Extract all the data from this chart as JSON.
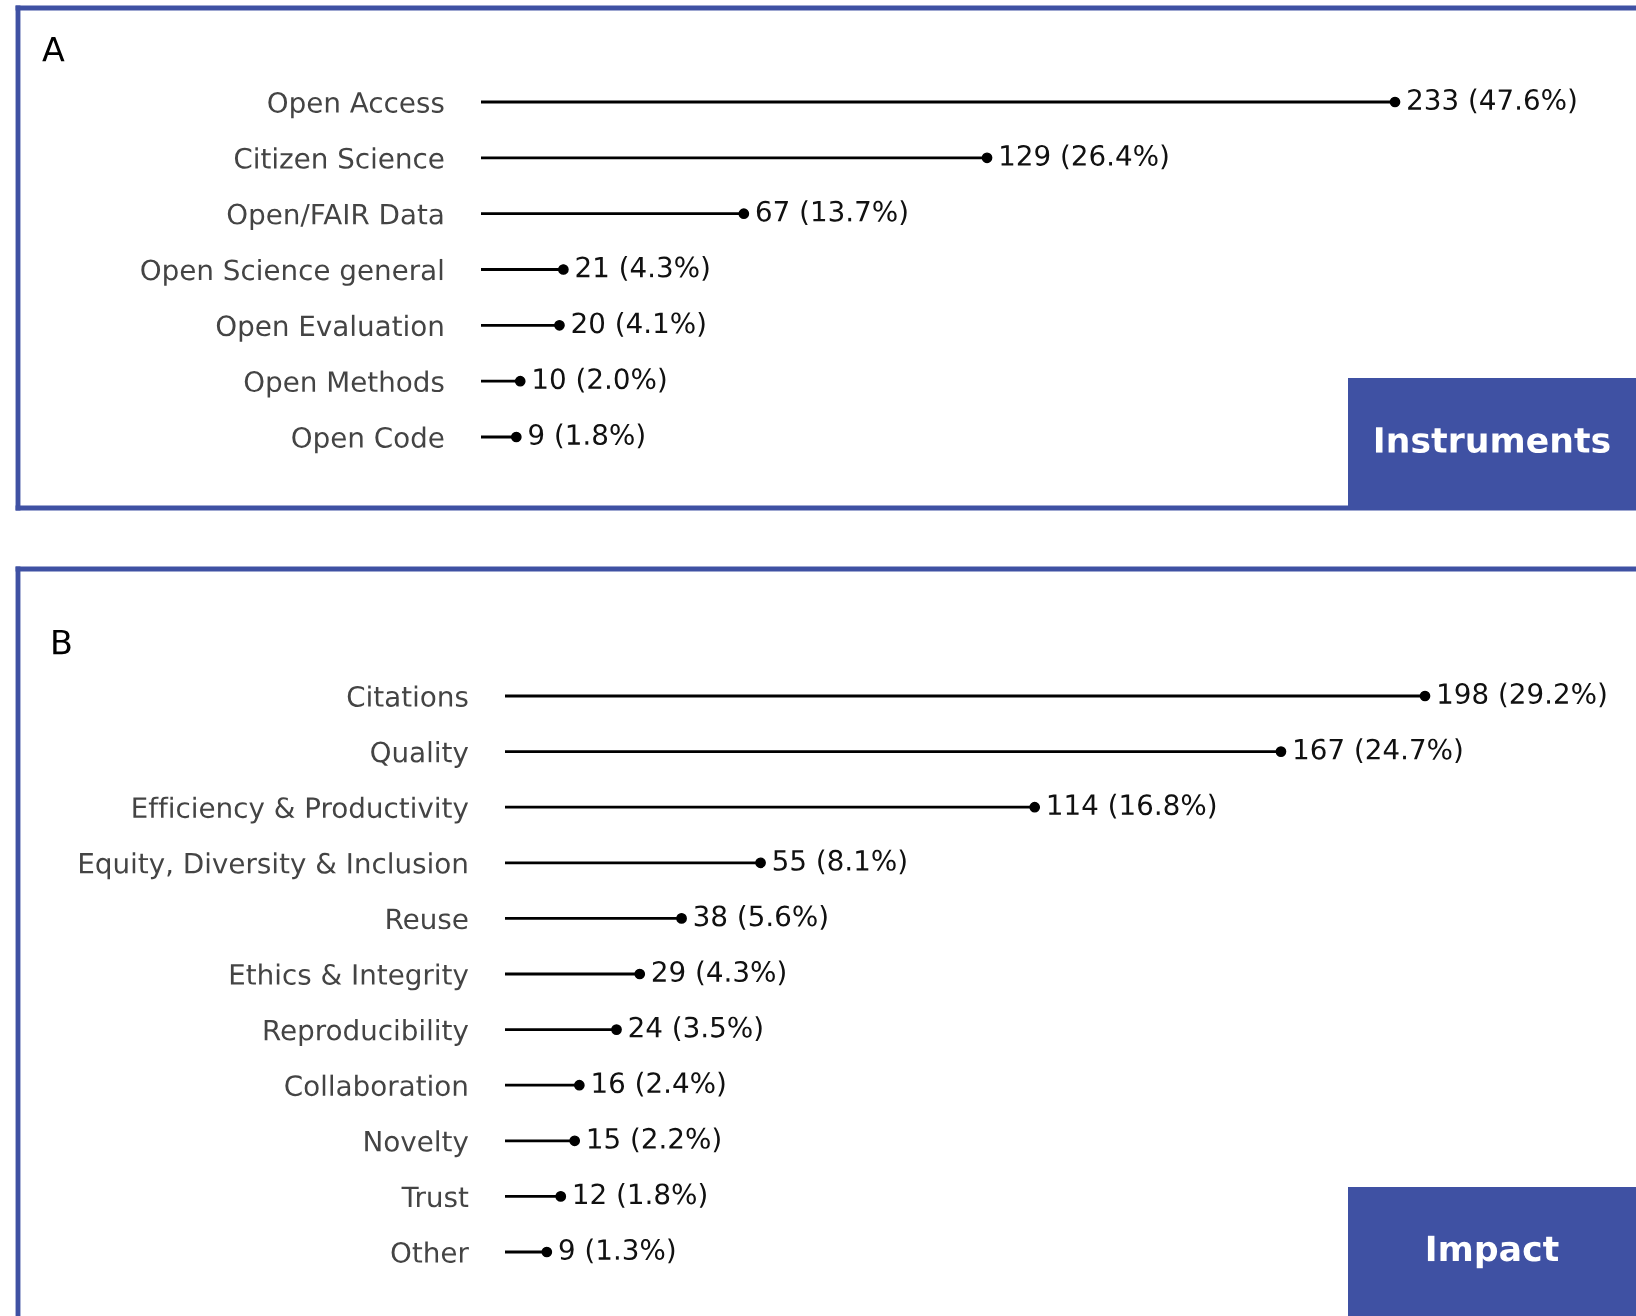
{
  "chart_data": [
    {
      "type": "lollipop",
      "orientation": "horizontal",
      "title": "A",
      "annotations": [
        "Instruments"
      ],
      "tick_labels": "y",
      "marker": "circle",
      "color": "#000000",
      "categories": [
        "Open Access",
        "Citizen Science",
        "Open/FAIR Data",
        "Open Science general",
        "Open Evaluation",
        "Open Methods",
        "Open Code"
      ],
      "values": [
        233,
        129,
        67,
        21,
        20,
        10,
        9
      ],
      "value_labels": [
        "233 (47.6%)",
        "129 (26.4%)",
        "67 (13.7%)",
        "21 (4.3%)",
        "20 (4.1%)",
        "10 (2.0%)",
        "9 (1.8%)"
      ]
    },
    {
      "type": "lollipop",
      "orientation": "horizontal",
      "title": "B",
      "annotations": [
        "Impact"
      ],
      "tick_labels": "y",
      "marker": "circle",
      "color": "#000000",
      "categories": [
        "Citations",
        "Quality",
        "Efficiency & Productivity",
        "Equity, Diversity & Inclusion",
        "Reuse",
        "Ethics & Integrity",
        "Reproducibility",
        "Collaboration",
        "Novelty",
        "Trust",
        "Other"
      ],
      "values": [
        198,
        167,
        114,
        55,
        38,
        29,
        24,
        16,
        15,
        12,
        9
      ],
      "value_labels": [
        "198 (29.2%)",
        "167 (24.7%)",
        "114 (16.8%)",
        "55 (8.1%)",
        "38 (5.6%)",
        "29 (4.3%)",
        "24 (3.5%)",
        "16 (2.4%)",
        "15 (2.2%)",
        "12 (1.8%)",
        "9 (1.3%)"
      ]
    }
  ]
}
